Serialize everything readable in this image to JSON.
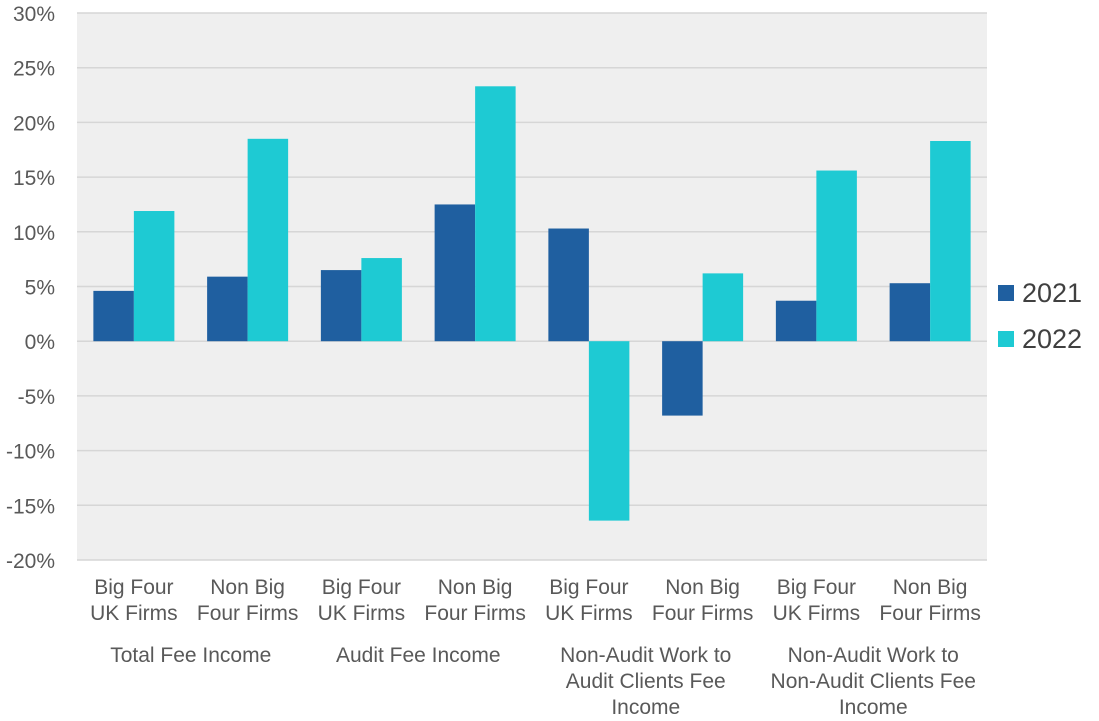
{
  "chart_data": {
    "type": "bar",
    "title": "",
    "xlabel": "",
    "ylabel": "",
    "ylim": [
      -20,
      30
    ],
    "yticks": [
      30,
      25,
      20,
      15,
      10,
      5,
      0,
      -5,
      -10,
      -15,
      -20
    ],
    "ytick_labels": [
      "30%",
      "25%",
      "20%",
      "15%",
      "10%",
      "5%",
      "0%",
      "-5%",
      "-10%",
      "-15%",
      "-20%"
    ],
    "grid": true,
    "legend_position": "right",
    "categories": [
      [
        "Big Four",
        "UK Firms"
      ],
      [
        "Non Big",
        "Four Firms"
      ],
      [
        "Big Four",
        "UK Firms"
      ],
      [
        "Non Big",
        "Four Firms"
      ],
      [
        "Big Four",
        "UK Firms"
      ],
      [
        "Non Big",
        "Four Firms"
      ],
      [
        "Big Four",
        "UK Firms"
      ],
      [
        "Non Big",
        "Four Firms"
      ]
    ],
    "groups": [
      [
        "Total Fee Income"
      ],
      [
        "Audit Fee Income"
      ],
      [
        "Non-Audit Work to",
        "Audit Clients Fee",
        "Income"
      ],
      [
        "Non-Audit Work to",
        "Non-Audit Clients Fee",
        "Income"
      ]
    ],
    "series": [
      {
        "name": "2021",
        "color": "#1f5fa0",
        "values": [
          4.6,
          5.9,
          6.5,
          12.5,
          10.3,
          -6.8,
          3.7,
          5.3
        ]
      },
      {
        "name": "2022",
        "color": "#1ecad3",
        "values": [
          11.9,
          18.5,
          7.6,
          23.3,
          -16.4,
          6.2,
          15.6,
          18.3
        ]
      }
    ]
  }
}
